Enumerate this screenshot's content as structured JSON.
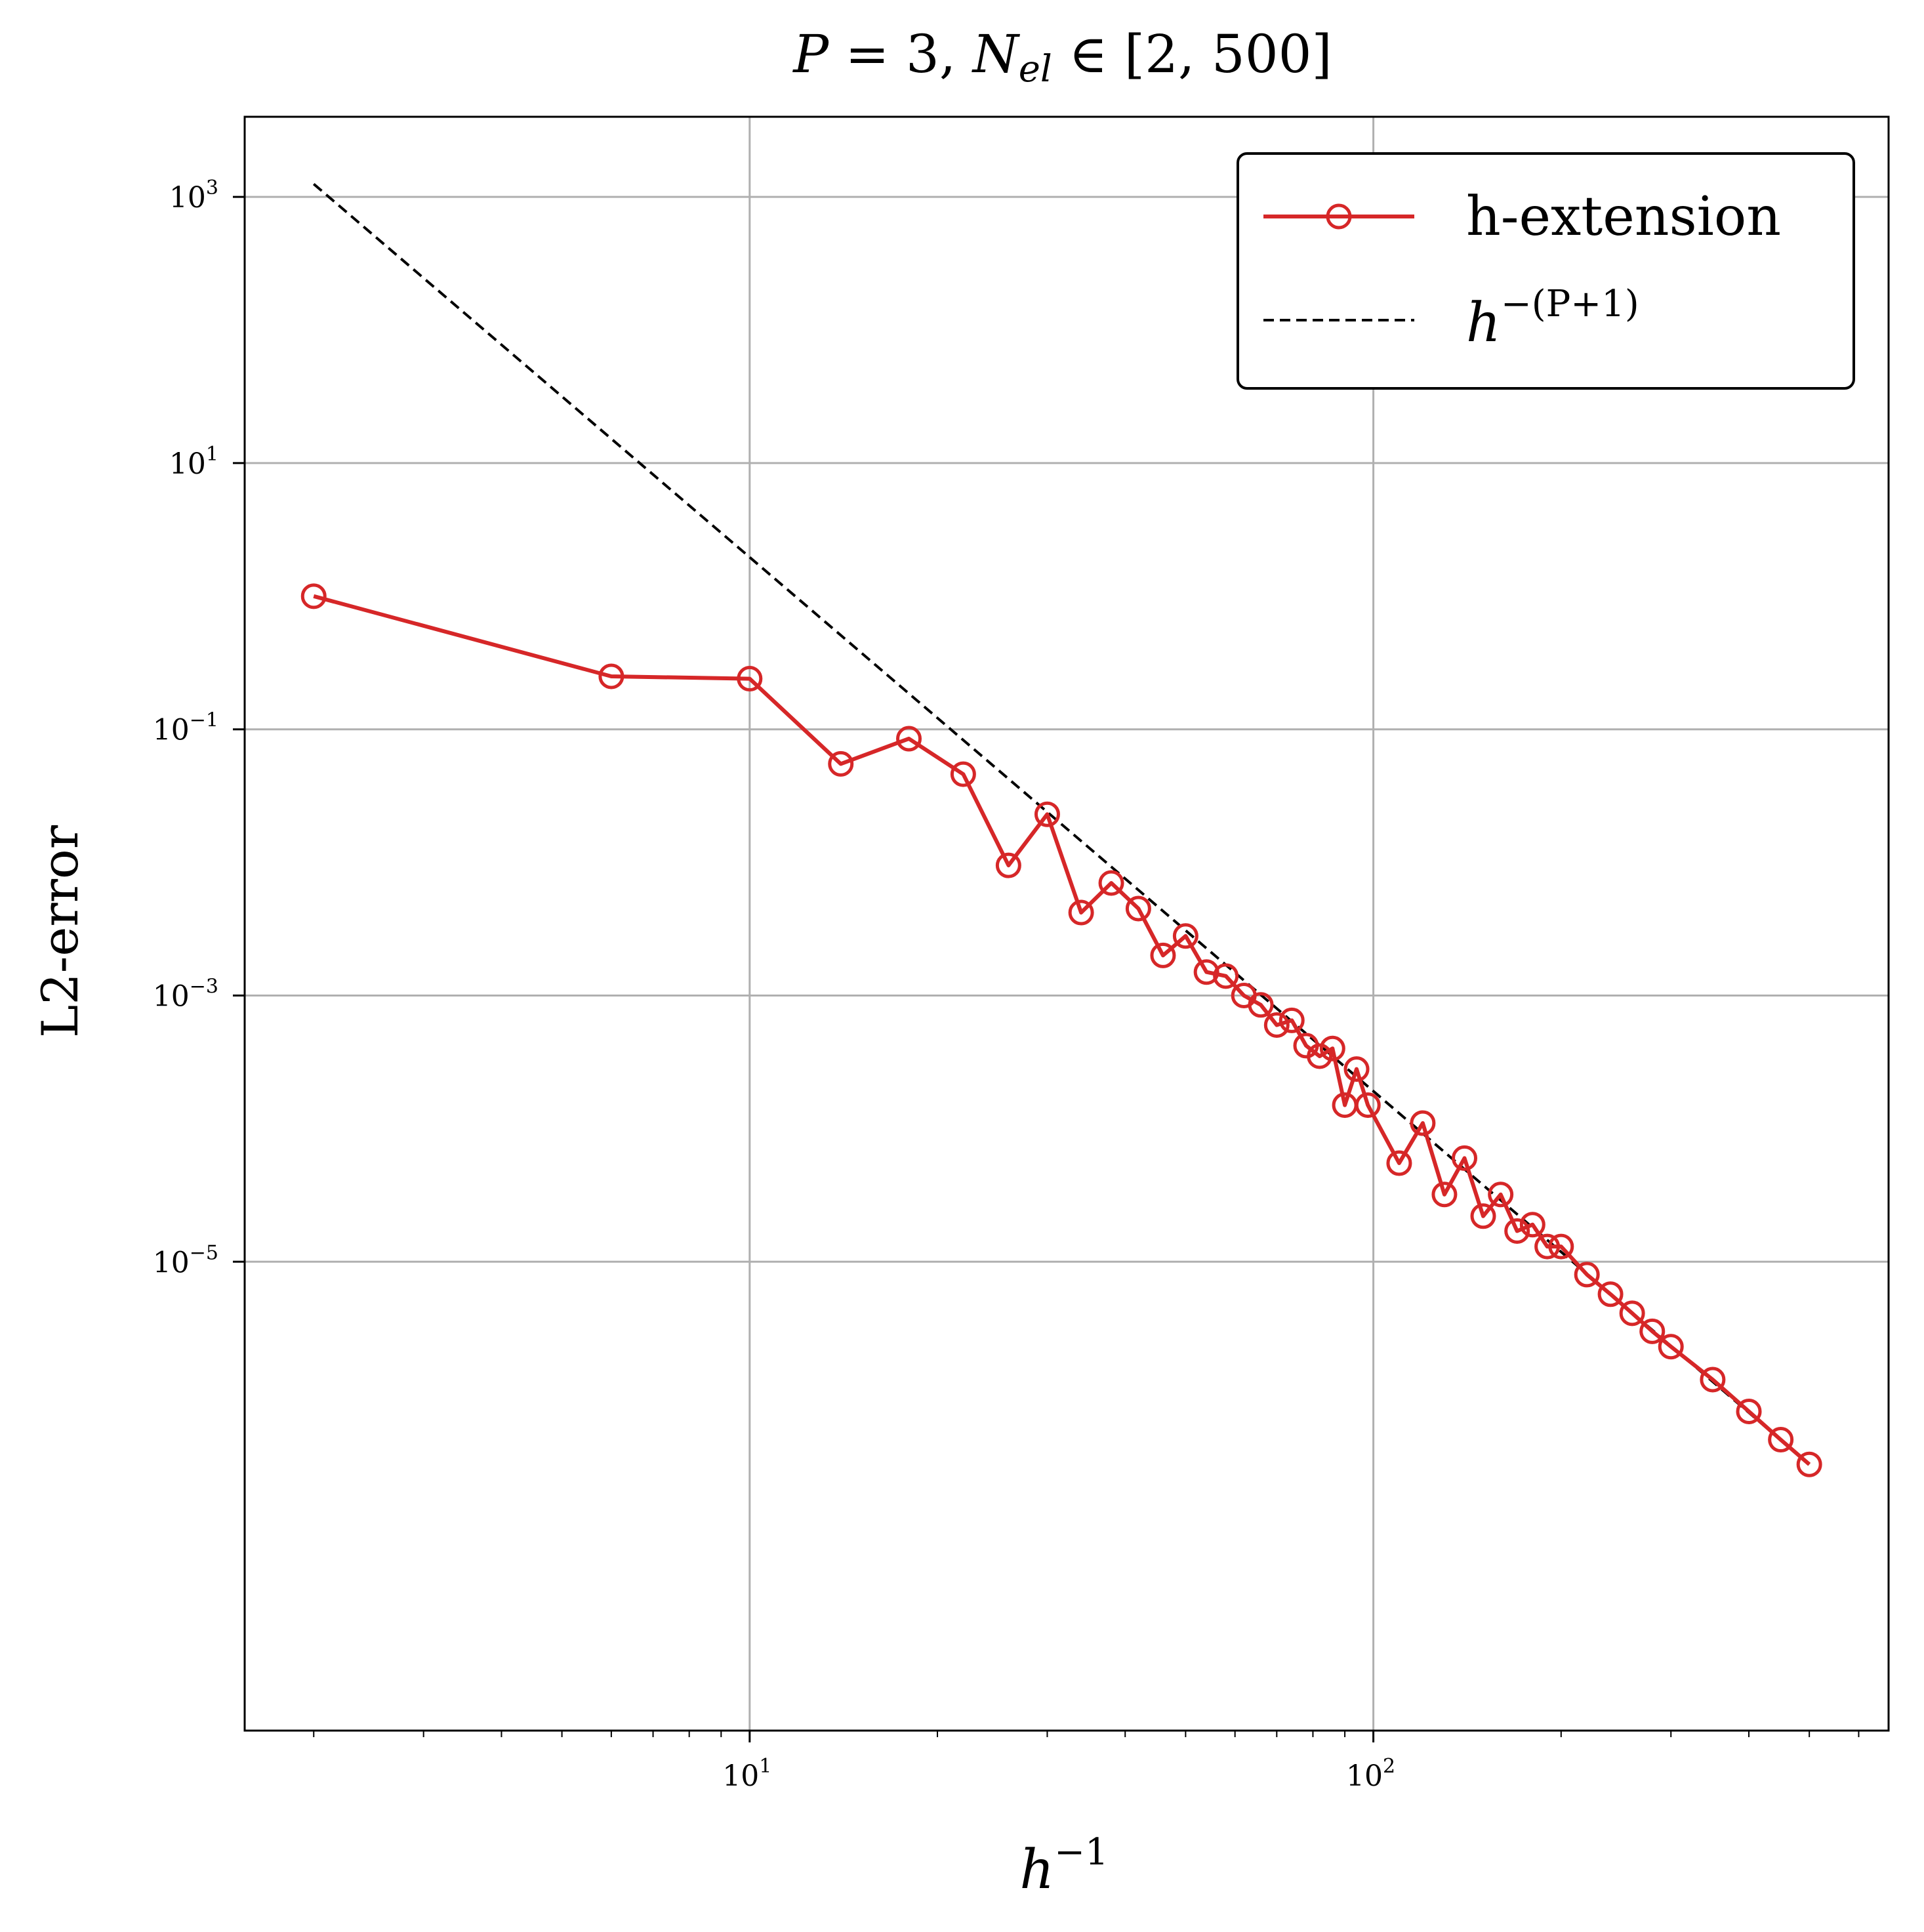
{
  "chart_data": {
    "type": "line",
    "title": "P = 3, N_el ∈ [2, 500]",
    "title_parts": {
      "p_var": "P",
      "eq": " = 3, ",
      "n_var": "N",
      "n_sub": "el",
      "in_range": " ∈ [2, 500]"
    },
    "xlabel": "h⁻¹",
    "xlabel_parts": {
      "base": "h",
      "exp": "−1"
    },
    "ylabel": "L2-error",
    "xscale": "log",
    "yscale": "log",
    "xlim": [
      1.55,
      670
    ],
    "ylim": [
      3e-09,
      4000
    ],
    "grid": true,
    "legend_position": "top-right",
    "x_ticks": [
      {
        "value": 10,
        "base": "10",
        "exp": "1"
      },
      {
        "value": 100,
        "base": "10",
        "exp": "2"
      }
    ],
    "y_ticks": [
      {
        "value": 1000,
        "base": "10",
        "exp": "3"
      },
      {
        "value": 10,
        "base": "10",
        "exp": "1"
      },
      {
        "value": 0.1,
        "base": "10",
        "exp": "−1"
      },
      {
        "value": 0.001,
        "base": "10",
        "exp": "−3"
      },
      {
        "value": 1e-05,
        "base": "10",
        "exp": "−5"
      }
    ],
    "series": [
      {
        "name": "h-extension",
        "color": "#d62728",
        "marker": "open-circle",
        "x": [
          2,
          6,
          10,
          14,
          18,
          22,
          26,
          30,
          34,
          38,
          42,
          46,
          50,
          54,
          58,
          62,
          66,
          70,
          74,
          78,
          82,
          86,
          90,
          94,
          98,
          110,
          120,
          130,
          140,
          150,
          160,
          170,
          180,
          190,
          200,
          220,
          240,
          260,
          280,
          300,
          350,
          400,
          450,
          500
        ],
        "y": [
          1.0,
          0.25,
          0.24,
          0.055,
          0.085,
          0.046,
          0.0095,
          0.023,
          0.0042,
          0.007,
          0.0045,
          0.002,
          0.0028,
          0.0015,
          0.0014,
          0.001,
          0.00085,
          0.0006,
          0.00065,
          0.00042,
          0.00035,
          0.0004,
          0.00015,
          0.00028,
          0.00015,
          5.5e-05,
          0.00011,
          3.2e-05,
          6e-05,
          2.2e-05,
          3.2e-05,
          1.7e-05,
          1.9e-05,
          1.3e-05,
          1.3e-05,
          8e-06,
          5.7e-06,
          4.1e-06,
          3e-06,
          2.3e-06,
          1.3e-06,
          7.5e-07,
          4.6e-07,
          3e-07
        ]
      },
      {
        "name": "h⁻⁽ᴾ⁺¹⁾",
        "label_parts": {
          "base": "h",
          "exp": "−(P+1)"
        },
        "color": "#000000",
        "style": "dashed",
        "x": [
          2,
          500
        ],
        "y": [
          1250,
          3e-07
        ]
      }
    ]
  }
}
